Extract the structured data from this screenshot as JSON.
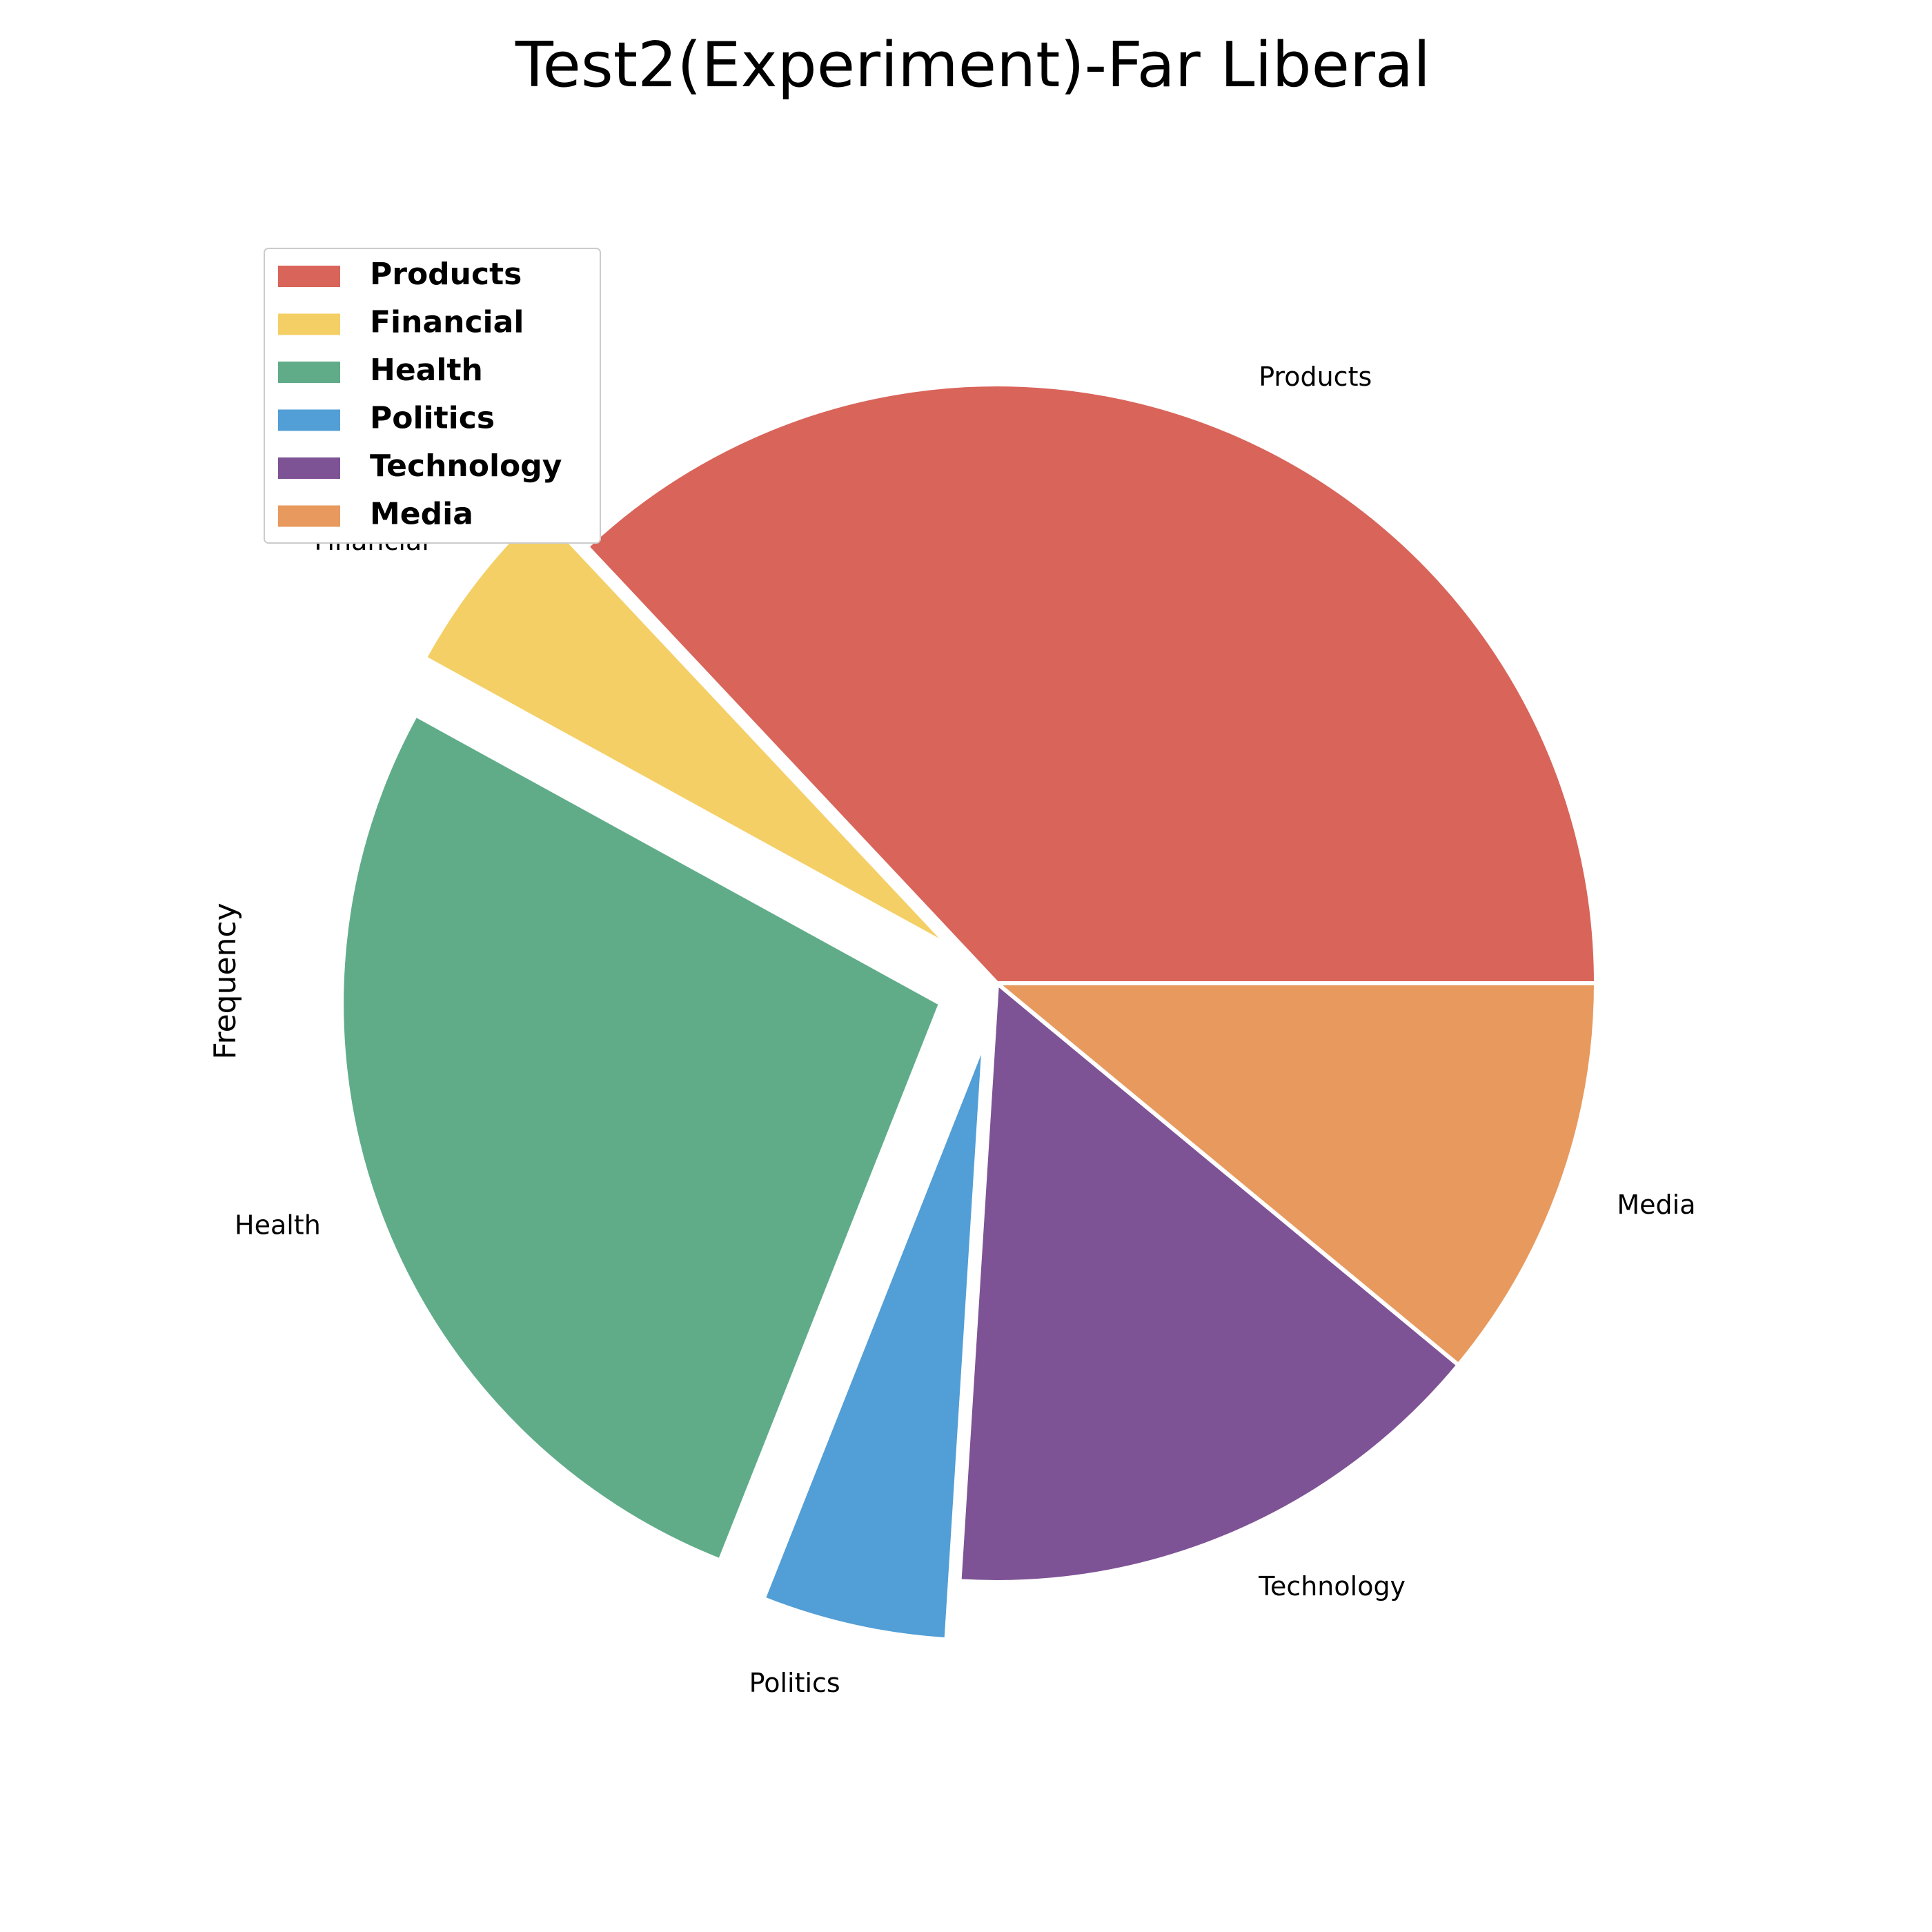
{
  "chart_data": {
    "type": "pie",
    "title": "Test2(Experiment)-Far Liberal",
    "ylabel": "Frequency",
    "legend_position": "upper-left",
    "slices": [
      {
        "label": "Products",
        "value": 37,
        "color": "#d9645a",
        "exploded": false
      },
      {
        "label": "Financial",
        "value": 5,
        "color": "#f4cf65",
        "exploded": true
      },
      {
        "label": "Health",
        "value": 27,
        "color": "#60ac89",
        "exploded": true
      },
      {
        "label": "Politics",
        "value": 5,
        "color": "#529ed6",
        "exploded": true
      },
      {
        "label": "Technology",
        "value": 15,
        "color": "#7e5395",
        "exploded": false
      },
      {
        "label": "Media",
        "value": 11,
        "color": "#e8995e",
        "exploded": false
      }
    ]
  }
}
